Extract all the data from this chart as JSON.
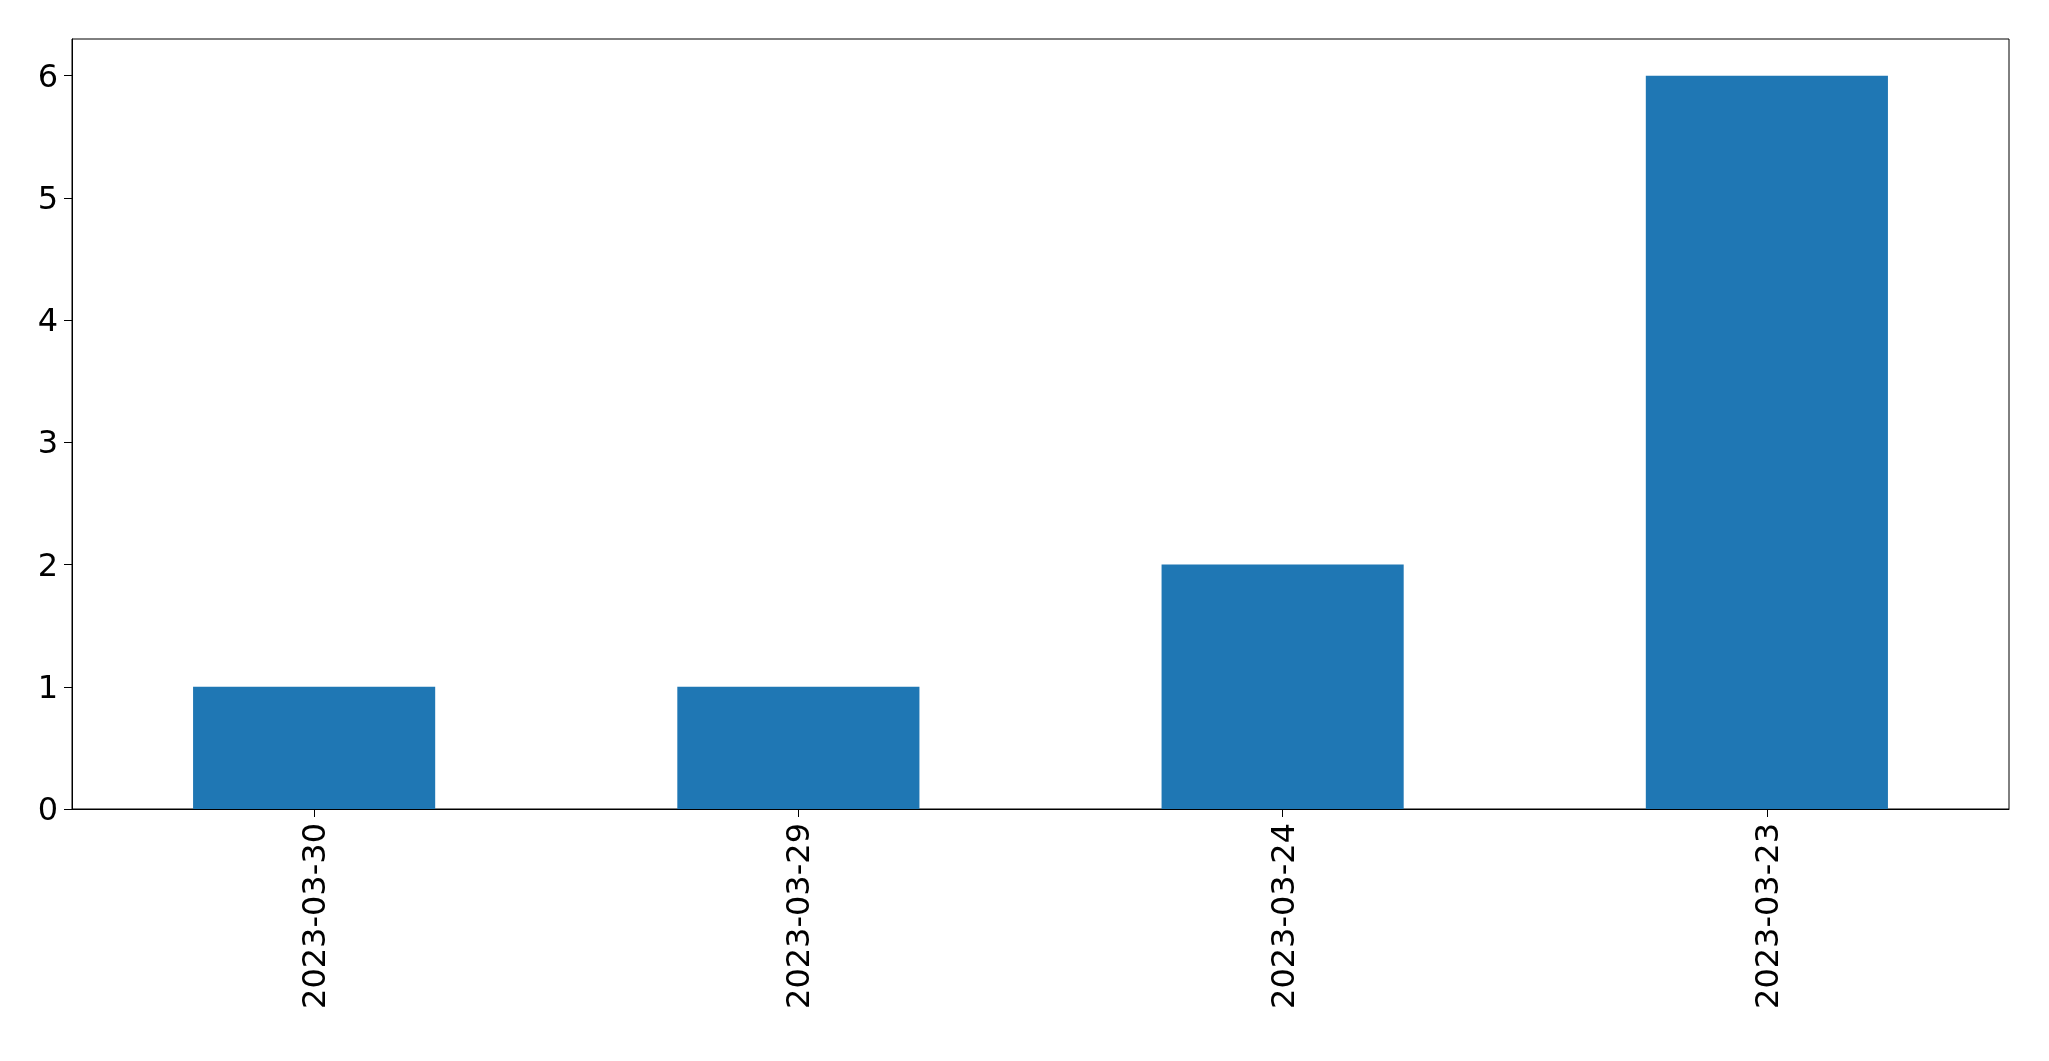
{
  "chart_data": {
    "type": "bar",
    "categories": [
      "2023-03-30",
      "2023-03-29",
      "2023-03-24",
      "2023-03-23"
    ],
    "values": [
      1,
      1,
      2,
      6
    ],
    "color": "#1f77b4",
    "ylim": [
      0,
      6.3
    ],
    "yticks": [
      0,
      1,
      2,
      3,
      4,
      5,
      6
    ],
    "grid": false
  }
}
